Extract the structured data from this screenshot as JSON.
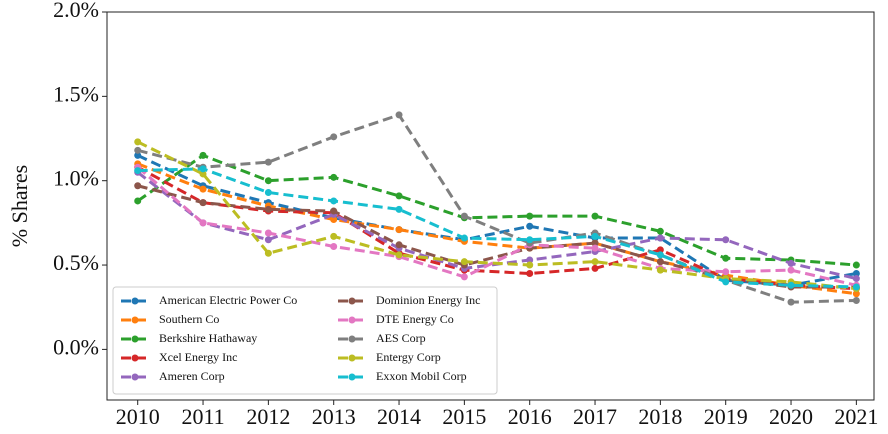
{
  "chart_data": {
    "type": "line",
    "ylabel": "% Shares",
    "x": [
      2010,
      2011,
      2012,
      2013,
      2014,
      2015,
      2016,
      2017,
      2018,
      2019,
      2020,
      2021
    ],
    "xlim": [
      2009.53,
      2021.27
    ],
    "xticks": [
      2010,
      2011,
      2012,
      2013,
      2014,
      2015,
      2016,
      2017,
      2018,
      2019,
      2020,
      2021
    ],
    "ylim": [
      -0.3,
      2.0
    ],
    "yticks": [
      {
        "value": 0,
        "label": "0.0%"
      },
      {
        "value": 0.5,
        "label": "0.5%"
      },
      {
        "value": 1,
        "label": "1.0%"
      },
      {
        "value": 1.5,
        "label": "1.5%"
      },
      {
        "value": 2,
        "label": "2.0%"
      }
    ],
    "legend": "lower left",
    "series": [
      {
        "name": "American Electric Power Co",
        "color": "#1f77b4",
        "values": [
          1.15,
          0.97,
          0.87,
          0.78,
          0.71,
          0.65,
          0.73,
          0.66,
          0.66,
          0.41,
          0.38,
          0.45
        ]
      },
      {
        "name": "Southern Co",
        "color": "#ff7f0e",
        "values": [
          1.1,
          0.95,
          0.85,
          0.77,
          0.71,
          0.64,
          0.6,
          0.63,
          0.52,
          0.44,
          0.38,
          0.33
        ]
      },
      {
        "name": "Berkshire Hathaway",
        "color": "#2ca02c",
        "values": [
          0.88,
          1.15,
          1.0,
          1.02,
          0.91,
          0.78,
          0.79,
          0.79,
          0.7,
          0.54,
          0.53,
          0.5
        ]
      },
      {
        "name": "Xcel Energy Inc",
        "color": "#d62728",
        "values": [
          1.08,
          0.87,
          0.82,
          0.81,
          0.57,
          0.47,
          0.45,
          0.48,
          0.59,
          0.42,
          0.38,
          0.36
        ]
      },
      {
        "name": "Ameren Corp",
        "color": "#9467bd",
        "values": [
          1.05,
          0.75,
          0.65,
          0.8,
          0.6,
          0.48,
          0.53,
          0.58,
          0.66,
          0.65,
          0.51,
          0.42
        ]
      },
      {
        "name": "Dominion Energy Inc",
        "color": "#8c564b",
        "values": [
          0.97,
          0.87,
          0.83,
          0.82,
          0.62,
          0.5,
          0.6,
          0.63,
          0.52,
          0.42,
          0.37,
          0.37
        ]
      },
      {
        "name": "DTE Energy Co",
        "color": "#e377c2",
        "values": [
          1.08,
          0.75,
          0.69,
          0.61,
          0.55,
          0.43,
          0.62,
          0.6,
          0.48,
          0.46,
          0.47,
          0.38
        ]
      },
      {
        "name": "AES Corp",
        "color": "#7f7f7f",
        "values": [
          1.18,
          1.08,
          1.11,
          1.26,
          1.39,
          0.79,
          0.63,
          0.69,
          0.56,
          0.41,
          0.28,
          0.29
        ]
      },
      {
        "name": "Entergy Corp",
        "color": "#bcbd22",
        "values": [
          1.23,
          1.04,
          0.57,
          0.67,
          0.56,
          0.52,
          0.5,
          0.52,
          0.47,
          0.42,
          0.4,
          0.36
        ]
      },
      {
        "name": "Exxon Mobil Corp",
        "color": "#17becf",
        "values": [
          1.06,
          1.07,
          0.93,
          0.88,
          0.83,
          0.66,
          0.65,
          0.67,
          0.56,
          0.4,
          0.38,
          0.37
        ]
      }
    ]
  }
}
